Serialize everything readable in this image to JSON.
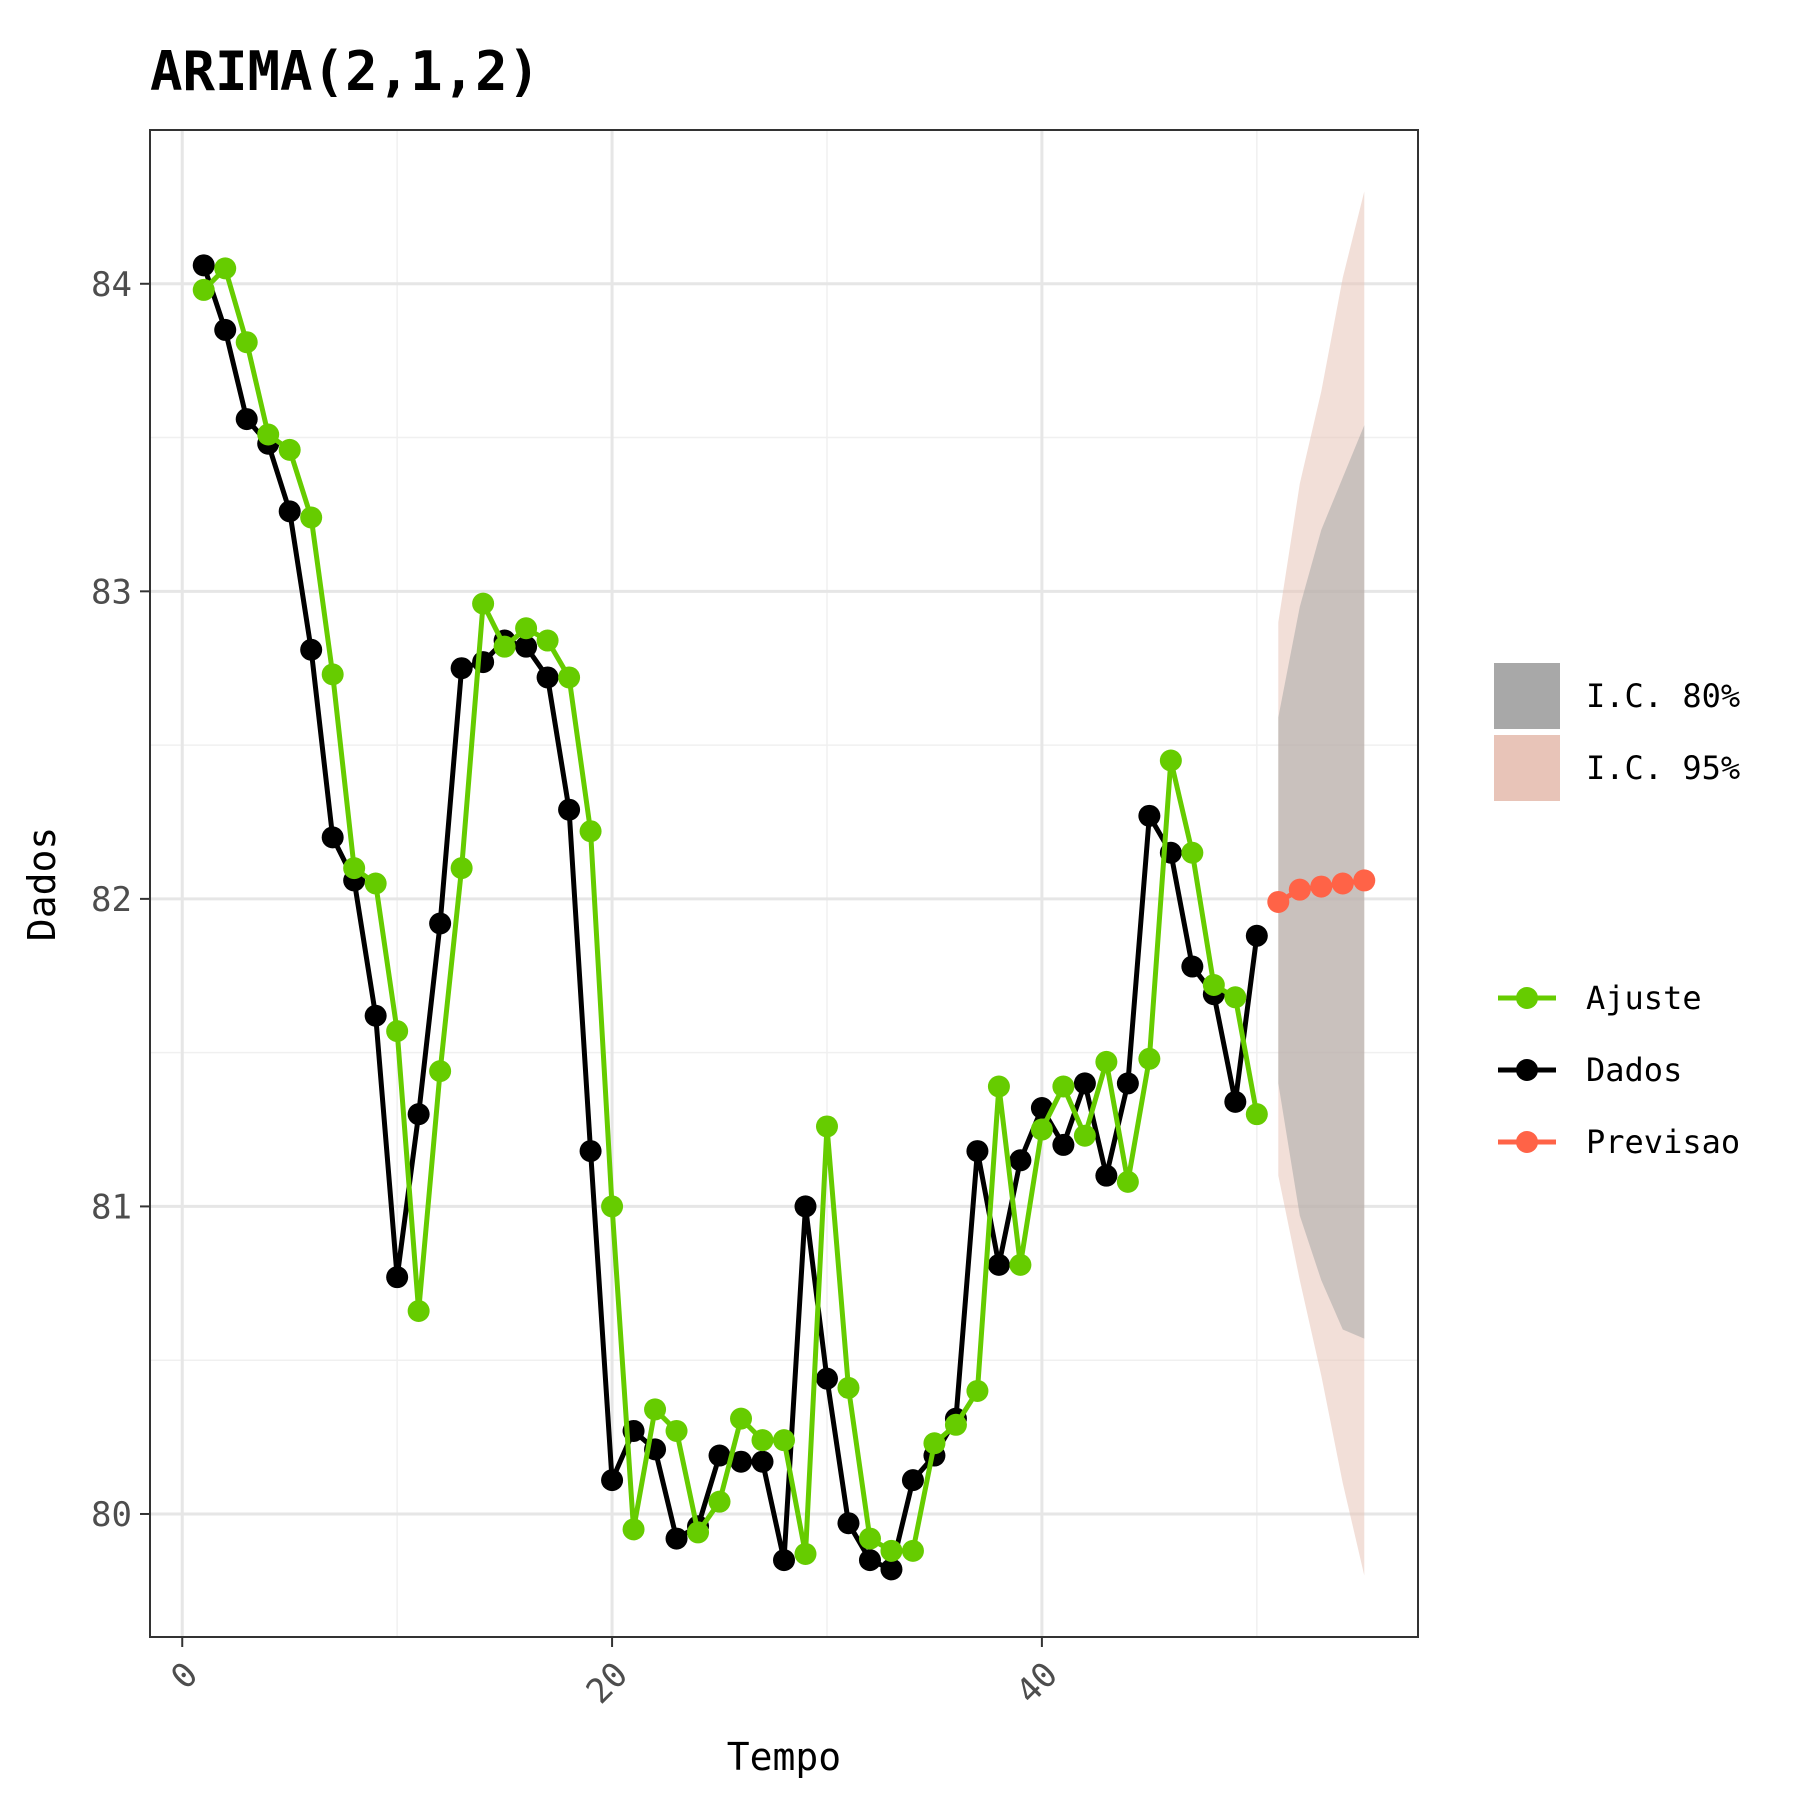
{
  "chart_data": {
    "type": "line",
    "title": "ARIMA(2,1,2)",
    "xlabel": "Tempo",
    "ylabel": "Dados",
    "xlim": [
      -1.5,
      57.5
    ],
    "ylim": [
      79.6,
      84.5
    ],
    "x_ticks": [
      0,
      20,
      40
    ],
    "y_ticks": [
      80,
      81,
      82,
      83,
      84
    ],
    "x_tick_labels": [
      "0",
      "20",
      "40"
    ],
    "y_tick_labels": [
      "80",
      "81",
      "82",
      "83",
      "84"
    ],
    "grid": true,
    "legend_position": "right",
    "series": [
      {
        "name": "Dados",
        "color": "#000000",
        "x": [
          1,
          2,
          3,
          4,
          5,
          6,
          7,
          8,
          9,
          10,
          11,
          12,
          13,
          14,
          15,
          16,
          17,
          18,
          19,
          20,
          21,
          22,
          23,
          24,
          25,
          26,
          27,
          28,
          29,
          30,
          31,
          32,
          33,
          34,
          35,
          36,
          37,
          38,
          39,
          40,
          41,
          42,
          43,
          44,
          45,
          46,
          47,
          48,
          49,
          50
        ],
        "values": [
          84.06,
          83.85,
          83.56,
          83.48,
          83.26,
          82.81,
          82.2,
          82.06,
          81.62,
          80.77,
          81.3,
          81.92,
          82.75,
          82.77,
          82.84,
          82.82,
          82.72,
          82.29,
          81.18,
          80.11,
          80.27,
          80.21,
          79.92,
          79.96,
          80.19,
          80.17,
          80.17,
          79.85,
          81.0,
          80.44,
          79.97,
          79.85,
          79.82,
          80.11,
          80.19,
          80.31,
          81.18,
          80.81,
          81.15,
          81.32,
          81.2,
          81.4,
          81.1,
          81.4,
          82.27,
          82.15,
          81.78,
          81.69,
          81.34,
          81.88
        ]
      },
      {
        "name": "Ajuste",
        "color": "#66cc00",
        "x": [
          1,
          2,
          3,
          4,
          5,
          6,
          7,
          8,
          9,
          10,
          11,
          12,
          13,
          14,
          15,
          16,
          17,
          18,
          19,
          20,
          21,
          22,
          23,
          24,
          25,
          26,
          27,
          28,
          29,
          30,
          31,
          32,
          33,
          34,
          35,
          36,
          37,
          38,
          39,
          40,
          41,
          42,
          43,
          44,
          45,
          46,
          47,
          48,
          49,
          50
        ],
        "values": [
          83.98,
          84.05,
          83.81,
          83.51,
          83.46,
          83.24,
          82.73,
          82.1,
          82.05,
          81.57,
          80.66,
          81.44,
          82.1,
          82.96,
          82.82,
          82.88,
          82.84,
          82.72,
          82.22,
          81.0,
          79.95,
          80.34,
          80.27,
          79.94,
          80.04,
          80.31,
          80.24,
          80.24,
          79.87,
          81.26,
          80.41,
          79.92,
          79.88,
          79.88,
          80.23,
          80.29,
          80.4,
          81.39,
          80.81,
          81.25,
          81.39,
          81.23,
          81.47,
          81.08,
          81.48,
          82.45,
          82.15,
          81.72,
          81.68,
          81.3
        ]
      },
      {
        "name": "Previsao",
        "color": "#ff6347",
        "x": [
          51,
          52,
          53,
          54,
          55
        ],
        "values": [
          81.99,
          82.03,
          82.04,
          82.05,
          82.06
        ]
      }
    ],
    "intervals": [
      {
        "name": "I.C. 95%",
        "color": "#e8c4b8",
        "x": [
          51,
          52,
          53,
          54,
          55
        ],
        "lower": [
          81.1,
          80.76,
          80.45,
          80.1,
          79.8
        ],
        "upper": [
          82.9,
          83.35,
          83.65,
          84.02,
          84.3
        ]
      },
      {
        "name": "I.C. 80%",
        "color": "#a8a8a8",
        "x": [
          51,
          52,
          53,
          54,
          55
        ],
        "lower": [
          81.4,
          80.97,
          80.76,
          80.6,
          80.57
        ],
        "upper": [
          82.59,
          82.95,
          83.2,
          83.37,
          83.54
        ]
      }
    ],
    "legend": {
      "fill_items": [
        "I.C. 80%",
        "I.C. 95%"
      ],
      "line_items": [
        "Ajuste",
        "Dados",
        "Previsao"
      ]
    }
  }
}
